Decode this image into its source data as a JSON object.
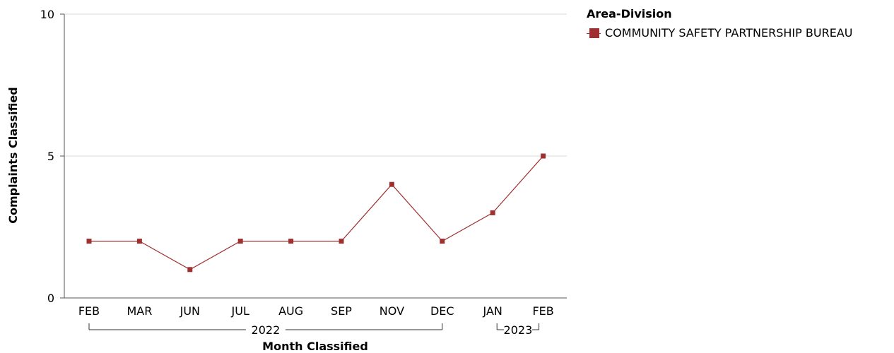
{
  "chart_data": {
    "type": "line",
    "title": "",
    "xlabel": "Month Classified",
    "ylabel": "Complaints Classified",
    "categories": [
      "FEB",
      "MAR",
      "JUN",
      "JUL",
      "AUG",
      "SEP",
      "NOV",
      "DEC",
      "JAN",
      "FEB"
    ],
    "year_groups": [
      {
        "label": "2022",
        "from": 0,
        "to": 7
      },
      {
        "label": "2023",
        "from": 8,
        "to": 9
      }
    ],
    "series": [
      {
        "name": "COMMUNITY SAFETY PARTNERSHIP BUREAU",
        "color": "#a03030",
        "values": [
          2,
          2,
          1,
          2,
          2,
          2,
          4,
          2,
          3,
          5
        ]
      }
    ],
    "ylim": [
      0,
      10
    ],
    "yticks": [
      0,
      5,
      10
    ],
    "grid": true,
    "legend": {
      "title": "Area-Division",
      "position": "right"
    }
  }
}
